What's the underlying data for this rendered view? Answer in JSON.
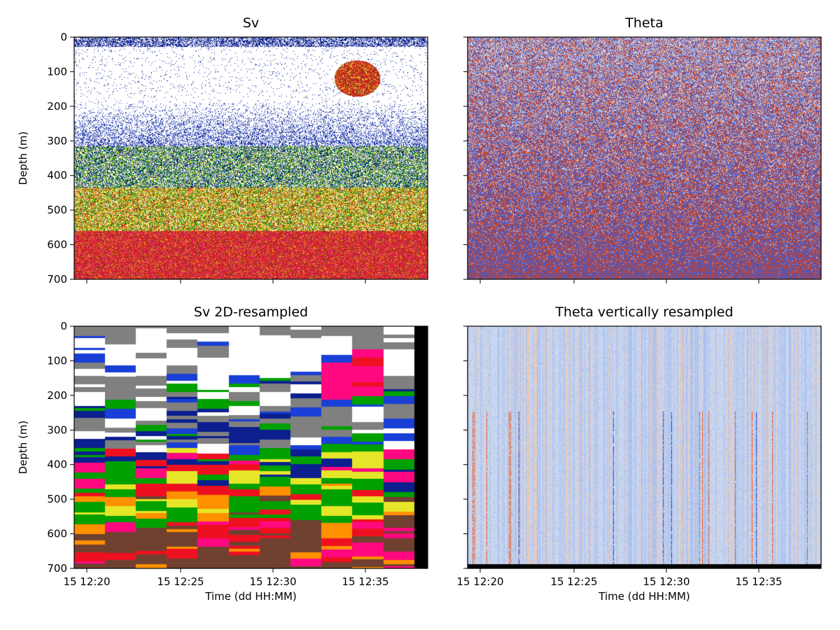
{
  "chart_data": [
    {
      "type": "heatmap",
      "title": "Sv",
      "ylabel": "Depth (m)",
      "xlabel": "",
      "ylim": [
        700,
        0
      ],
      "yticks": [
        "0",
        "100",
        "200",
        "300",
        "400",
        "500",
        "600",
        "700"
      ],
      "xticks": [
        "15 12:20",
        "15 12:25",
        "15 12:30",
        "15 12:35"
      ],
      "show_xticklabels": false,
      "show_yticklabels": true,
      "colors": [
        "#ffffff",
        "#0b1f8f",
        "#1a3fd6",
        "#0f8a1c",
        "#e6e629",
        "#f0a020",
        "#d42020",
        "#ee2080",
        "#7a3a2a"
      ]
    },
    {
      "type": "heatmap",
      "title": "Theta",
      "ylabel": "",
      "xlabel": "",
      "ylim": [
        700,
        0
      ],
      "yticks": [
        "0",
        "100",
        "200",
        "300",
        "400",
        "500",
        "600",
        "700"
      ],
      "xticks": [
        "15 12:20",
        "15 12:25",
        "15 12:30",
        "15 12:35"
      ],
      "show_xticklabels": false,
      "show_yticklabels": false,
      "colors": [
        "#3a5bd6",
        "#c8d4ee",
        "#e0c8c0",
        "#d04020"
      ]
    },
    {
      "type": "heatmap",
      "title": "Sv 2D-resampled",
      "ylabel": "Depth (m)",
      "xlabel": "Time (dd HH:MM)",
      "ylim": [
        700,
        0
      ],
      "yticks": [
        "0",
        "100",
        "200",
        "300",
        "400",
        "500",
        "600",
        "700"
      ],
      "xticks": [
        "15 12:20",
        "15 12:25",
        "15 12:30",
        "15 12:35"
      ],
      "show_xticklabels": true,
      "show_yticklabels": true,
      "colors": [
        "#ffffff",
        "#808080",
        "#0b1f8f",
        "#1a3fd6",
        "#00a000",
        "#e6e629",
        "#ff9000",
        "#ee1020",
        "#ff0880",
        "#704030",
        "#000000"
      ]
    },
    {
      "type": "heatmap",
      "title": "Theta vertically resampled",
      "ylabel": "",
      "xlabel": "Time (dd HH:MM)",
      "ylim": [
        700,
        0
      ],
      "yticks": [
        "0",
        "100",
        "200",
        "300",
        "400",
        "500",
        "600",
        "700"
      ],
      "xticks": [
        "15 12:20",
        "15 12:25",
        "15 12:30",
        "15 12:35"
      ],
      "show_xticklabels": true,
      "show_yticklabels": false,
      "colors": [
        "#c9d6ee",
        "#a8c0f0",
        "#f0c8b0",
        "#e05020",
        "#2040c0",
        "#000000"
      ]
    }
  ]
}
